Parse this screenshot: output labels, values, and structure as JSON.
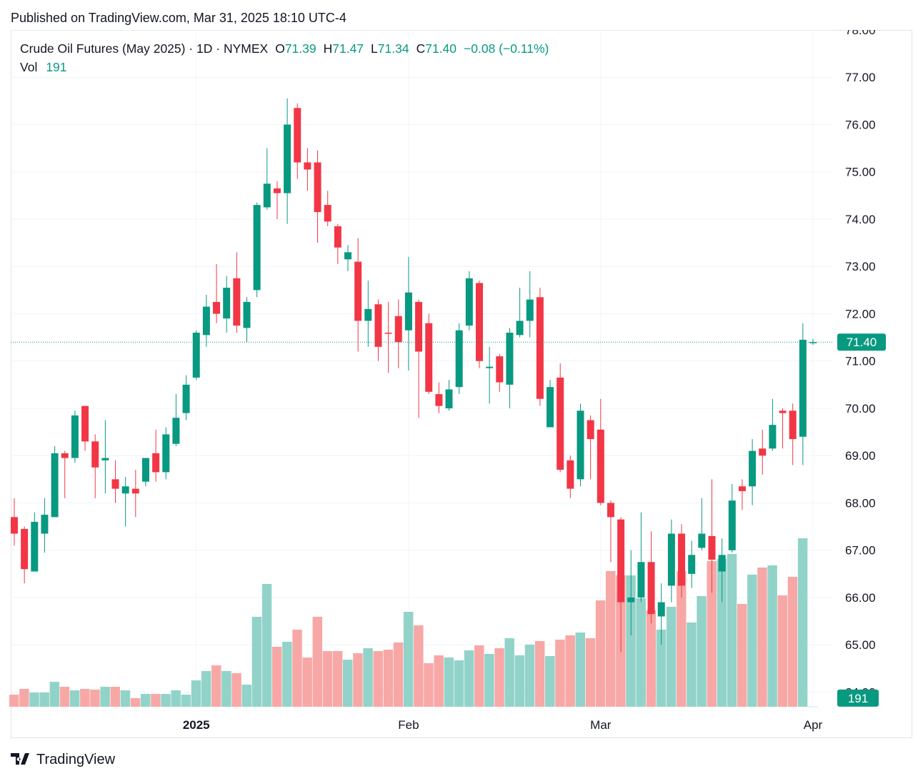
{
  "published": "Published on TradingView.com, Mar 31, 2025 18:10 UTC-4",
  "chart_data": {
    "type": "candlestick",
    "title": "Crude Oil Futures (May 2025) · 1D · NYMEX",
    "legend": {
      "open_key": "O",
      "high_key": "H",
      "low_key": "L",
      "close_key": "C",
      "change": "−0.08 (−0.11%)",
      "volume_key": "Vol"
    },
    "categories": [
      null,
      null,
      null,
      null,
      null,
      null,
      null,
      null,
      null,
      null,
      null,
      null,
      null,
      null,
      null,
      null,
      null,
      null,
      "2025",
      null,
      null,
      null,
      null,
      null,
      null,
      null,
      null,
      null,
      null,
      null,
      null,
      null,
      null,
      null,
      null,
      null,
      null,
      null,
      null,
      "Feb",
      null,
      null,
      null,
      null,
      null,
      null,
      null,
      null,
      null,
      null,
      null,
      null,
      null,
      null,
      null,
      null,
      null,
      null,
      "Mar",
      null,
      null,
      null,
      null,
      null,
      null,
      null,
      null,
      null,
      null,
      null,
      null,
      null,
      null,
      null,
      null,
      null,
      null,
      null,
      null,
      "Apr"
    ],
    "open": [
      67.7,
      67.45,
      66.55,
      67.35,
      67.7,
      69.05,
      68.95,
      70.05,
      69.3,
      68.9,
      68.5,
      68.2,
      68.3,
      68.45,
      69.05,
      68.65,
      69.25,
      69.9,
      70.65,
      71.55,
      72.25,
      71.9,
      72.75,
      71.7,
      72.5,
      74.25,
      74.65,
      74.55,
      76.35,
      75.2,
      75.2,
      74.3,
      73.85,
      73.15,
      73.1,
      71.85,
      72.2,
      71.6,
      71.95,
      71.65,
      72.25,
      71.8,
      70.3,
      70.0,
      70.45,
      71.75,
      72.65,
      70.85,
      71.1,
      70.5,
      71.55,
      71.85,
      72.35,
      69.6,
      70.65,
      68.9,
      68.5,
      69.75,
      69.55,
      68.0,
      67.65,
      65.9,
      66.0,
      66.75,
      65.6,
      66.25,
      67.35,
      66.5,
      67.05,
      67.3,
      66.55,
      67.0,
      68.35,
      68.35,
      69.15,
      69.15,
      69.95,
      69.95,
      69.4,
      71.39
    ],
    "high": [
      68.1,
      67.5,
      67.8,
      68.1,
      69.2,
      69.1,
      69.95,
      70.05,
      69.45,
      69.75,
      68.9,
      68.55,
      68.7,
      68.95,
      69.55,
      69.6,
      70.3,
      70.7,
      71.65,
      72.4,
      73.05,
      72.8,
      73.3,
      72.35,
      74.35,
      75.5,
      74.8,
      76.55,
      76.45,
      75.5,
      75.45,
      74.6,
      73.9,
      73.45,
      73.6,
      72.7,
      72.3,
      72.25,
      72.3,
      73.2,
      72.3,
      72.0,
      70.55,
      70.6,
      71.8,
      72.9,
      72.7,
      71.3,
      71.15,
      71.7,
      72.55,
      72.9,
      72.55,
      70.6,
      70.95,
      69.0,
      70.1,
      69.85,
      70.2,
      68.05,
      67.7,
      67.0,
      67.8,
      67.4,
      66.3,
      67.65,
      67.55,
      67.2,
      68.1,
      68.5,
      67.25,
      68.4,
      68.5,
      69.35,
      69.55,
      70.2,
      70.0,
      70.1,
      71.8,
      71.47
    ],
    "low": [
      67.1,
      66.3,
      66.55,
      66.95,
      67.7,
      68.1,
      68.85,
      69.1,
      68.1,
      68.2,
      68.0,
      67.5,
      67.7,
      68.35,
      68.45,
      68.5,
      69.2,
      69.75,
      70.6,
      71.3,
      71.8,
      71.6,
      71.6,
      71.4,
      72.35,
      74.2,
      74.0,
      73.9,
      74.85,
      74.6,
      73.5,
      73.85,
      73.05,
      72.9,
      71.2,
      71.3,
      71.0,
      70.75,
      70.85,
      70.8,
      69.8,
      70.3,
      69.9,
      69.95,
      70.3,
      71.65,
      70.85,
      70.1,
      70.35,
      70.0,
      71.5,
      71.5,
      70.05,
      69.6,
      68.65,
      68.1,
      68.35,
      68.5,
      67.95,
      66.75,
      64.85,
      65.2,
      65.9,
      65.45,
      65.0,
      65.9,
      66.0,
      66.2,
      67.0,
      66.1,
      65.9,
      66.95,
      67.85,
      67.95,
      68.6,
      69.1,
      69.15,
      68.8,
      68.8,
      71.34
    ],
    "close": [
      67.35,
      66.6,
      67.6,
      67.75,
      69.05,
      68.95,
      69.85,
      69.3,
      68.75,
      68.95,
      68.3,
      68.35,
      68.2,
      68.95,
      68.65,
      69.45,
      69.8,
      70.5,
      71.6,
      72.15,
      72.0,
      72.55,
      71.75,
      72.25,
      74.3,
      74.75,
      74.55,
      76.0,
      75.2,
      75.05,
      74.15,
      73.95,
      73.4,
      73.3,
      71.85,
      72.1,
      71.3,
      71.58,
      71.4,
      72.45,
      71.2,
      70.35,
      70.05,
      70.4,
      71.65,
      72.75,
      71.0,
      70.88,
      70.55,
      71.6,
      71.85,
      72.3,
      70.2,
      70.45,
      68.7,
      68.3,
      69.95,
      69.35,
      68.0,
      67.7,
      65.9,
      66.0,
      66.75,
      65.65,
      65.9,
      67.35,
      66.25,
      66.9,
      67.35,
      66.8,
      66.9,
      68.05,
      68.25,
      69.1,
      69.0,
      69.65,
      69.9,
      69.35,
      71.45,
      71.4
    ],
    "volume": [
      17900,
      26400,
      21100,
      21100,
      36900,
      29500,
      24300,
      26400,
      25300,
      29500,
      29500,
      24300,
      12700,
      19000,
      19000,
      19000,
      24300,
      17900,
      39000,
      52800,
      61200,
      52800,
      49600,
      32700,
      132900,
      181500,
      88600,
      96000,
      113900,
      72800,
      132900,
      82300,
      82300,
      69600,
      79100,
      86500,
      82300,
      84400,
      95000,
      140300,
      120300,
      64400,
      76000,
      72800,
      68600,
      83300,
      90700,
      78100,
      86500,
      101300,
      76000,
      91800,
      97100,
      74900,
      99200,
      105500,
      109700,
      101300,
      157200,
      200500,
      194100,
      194100,
      160400,
      142400,
      113900,
      147700,
      200500,
      124500,
      163500,
      215200,
      218400,
      225800,
      151900,
      195200,
      205700,
      208900,
      164600,
      192000,
      249000,
      191
    ],
    "up_color": "#089981",
    "down_color": "#f23645",
    "volume_up_color": "#92d3c9",
    "volume_down_color": "#f7a8a6",
    "ylim": [
      63.69,
      78.0
    ],
    "yticks": [
      {
        "value": 64,
        "label": "64.00"
      },
      {
        "value": 65,
        "label": "65.00"
      },
      {
        "value": 66,
        "label": "66.00"
      },
      {
        "value": 67,
        "label": "67.00"
      },
      {
        "value": 68,
        "label": "68.00"
      },
      {
        "value": 69,
        "label": "69.00"
      },
      {
        "value": 70,
        "label": "70.00"
      },
      {
        "value": 71,
        "label": "71.00"
      },
      {
        "value": 72,
        "label": "72.00"
      },
      {
        "value": 73,
        "label": "73.00"
      },
      {
        "value": 74,
        "label": "74.00"
      },
      {
        "value": 75,
        "label": "75.00"
      },
      {
        "value": 76,
        "label": "76.00"
      },
      {
        "value": 77,
        "label": "77.00"
      },
      {
        "value": 78,
        "label": "78.00"
      }
    ],
    "volume_ylim": [
      0,
      1000000
    ],
    "last_price": {
      "value": 71.4,
      "label": "71.40"
    },
    "grid": true
  },
  "footer": "TradingView"
}
